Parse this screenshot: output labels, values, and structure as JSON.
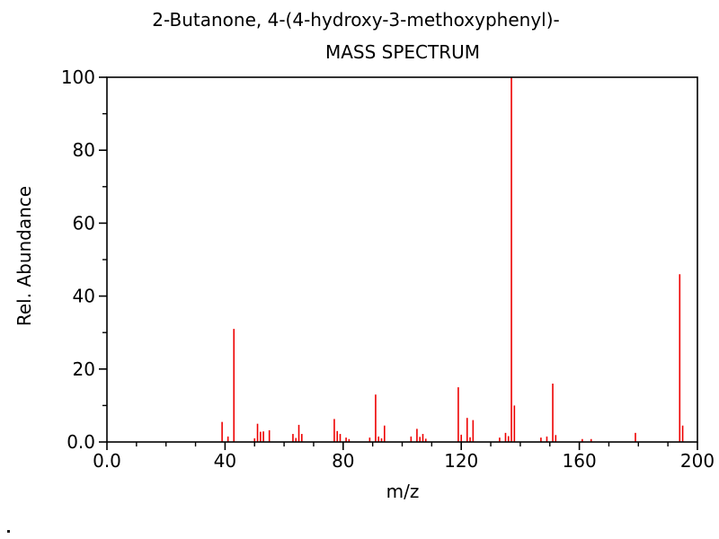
{
  "page": {
    "background": "#ffffff"
  },
  "chart_data": {
    "type": "bar",
    "subtype": "mass-spectrum-stick-plot",
    "title": "2-Butanone, 4-(4-hydroxy-3-methoxyphenyl)-",
    "subtitle": "MASS SPECTRUM",
    "xlabel": "m/z",
    "ylabel": "Rel. Abundance",
    "xlim": [
      0,
      200
    ],
    "ylim": [
      0,
      100
    ],
    "grid": "off",
    "legend": "none",
    "x_ticks": [
      {
        "v": 0,
        "label": "0.0"
      },
      {
        "v": 40,
        "label": "40"
      },
      {
        "v": 80,
        "label": "80"
      },
      {
        "v": 120,
        "label": "120"
      },
      {
        "v": 160,
        "label": "160"
      },
      {
        "v": 200,
        "label": "200"
      }
    ],
    "x_minor_step": 10,
    "y_ticks": [
      {
        "v": 0,
        "label": "0.0"
      },
      {
        "v": 20,
        "label": "20"
      },
      {
        "v": 40,
        "label": "40"
      },
      {
        "v": 60,
        "label": "60"
      },
      {
        "v": 80,
        "label": "80"
      },
      {
        "v": 100,
        "label": "100"
      }
    ],
    "y_minor_step": 10,
    "peak_color": "#ee0000",
    "axis_color": "#000000",
    "peaks": [
      {
        "mz": 39,
        "intensity": 5.5
      },
      {
        "mz": 41,
        "intensity": 1.5
      },
      {
        "mz": 43,
        "intensity": 31
      },
      {
        "mz": 50,
        "intensity": 1.0
      },
      {
        "mz": 51,
        "intensity": 5.0
      },
      {
        "mz": 52,
        "intensity": 2.8
      },
      {
        "mz": 53,
        "intensity": 2.9
      },
      {
        "mz": 55,
        "intensity": 3.2
      },
      {
        "mz": 63,
        "intensity": 2.2
      },
      {
        "mz": 64,
        "intensity": 1.1
      },
      {
        "mz": 65,
        "intensity": 4.7
      },
      {
        "mz": 66,
        "intensity": 2.2
      },
      {
        "mz": 77,
        "intensity": 6.3
      },
      {
        "mz": 78,
        "intensity": 3.0
      },
      {
        "mz": 79,
        "intensity": 2.2
      },
      {
        "mz": 81,
        "intensity": 1.2
      },
      {
        "mz": 82,
        "intensity": 0.8
      },
      {
        "mz": 89,
        "intensity": 1.2
      },
      {
        "mz": 91,
        "intensity": 13
      },
      {
        "mz": 92,
        "intensity": 1.5
      },
      {
        "mz": 93,
        "intensity": 1.0
      },
      {
        "mz": 94,
        "intensity": 4.5
      },
      {
        "mz": 103,
        "intensity": 1.5
      },
      {
        "mz": 105,
        "intensity": 3.6
      },
      {
        "mz": 106,
        "intensity": 1.4
      },
      {
        "mz": 107,
        "intensity": 2.2
      },
      {
        "mz": 108,
        "intensity": 0.9
      },
      {
        "mz": 119,
        "intensity": 15
      },
      {
        "mz": 120,
        "intensity": 2.0
      },
      {
        "mz": 122,
        "intensity": 6.6
      },
      {
        "mz": 123,
        "intensity": 1.3
      },
      {
        "mz": 124,
        "intensity": 6.0
      },
      {
        "mz": 133,
        "intensity": 1.2
      },
      {
        "mz": 135,
        "intensity": 2.5
      },
      {
        "mz": 136,
        "intensity": 1.6
      },
      {
        "mz": 137,
        "intensity": 100
      },
      {
        "mz": 138,
        "intensity": 10
      },
      {
        "mz": 147,
        "intensity": 1.2
      },
      {
        "mz": 149,
        "intensity": 1.5
      },
      {
        "mz": 151,
        "intensity": 16
      },
      {
        "mz": 152,
        "intensity": 1.9
      },
      {
        "mz": 161,
        "intensity": 0.8
      },
      {
        "mz": 164,
        "intensity": 0.8
      },
      {
        "mz": 179,
        "intensity": 2.5
      },
      {
        "mz": 194,
        "intensity": 46
      },
      {
        "mz": 195,
        "intensity": 4.5
      }
    ]
  }
}
